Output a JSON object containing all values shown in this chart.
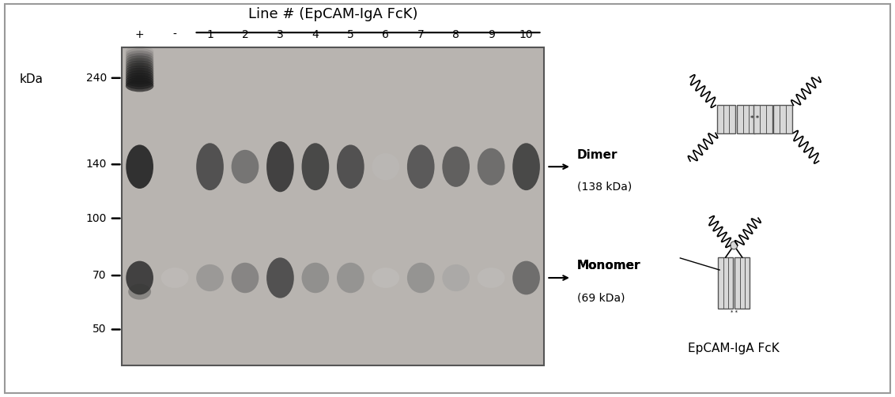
{
  "title": "Line # (EpCAM-IgA FcK)",
  "kda_label": "kDa",
  "markers": [
    240,
    140,
    100,
    70,
    50
  ],
  "lane_labels": [
    "+",
    "-",
    "1",
    "2",
    "3",
    "4",
    "5",
    "6",
    "7",
    "8",
    "9",
    "10"
  ],
  "dimer_label1": "Dimer",
  "dimer_label2": "(138 kDa)",
  "monomer_label1": "Monomer",
  "monomer_label2": "(69 kDa)",
  "epcam_label": "EpCAM-IgA FcK",
  "fig_bg": "#ffffff",
  "gel_bg": "#b8b4b0"
}
